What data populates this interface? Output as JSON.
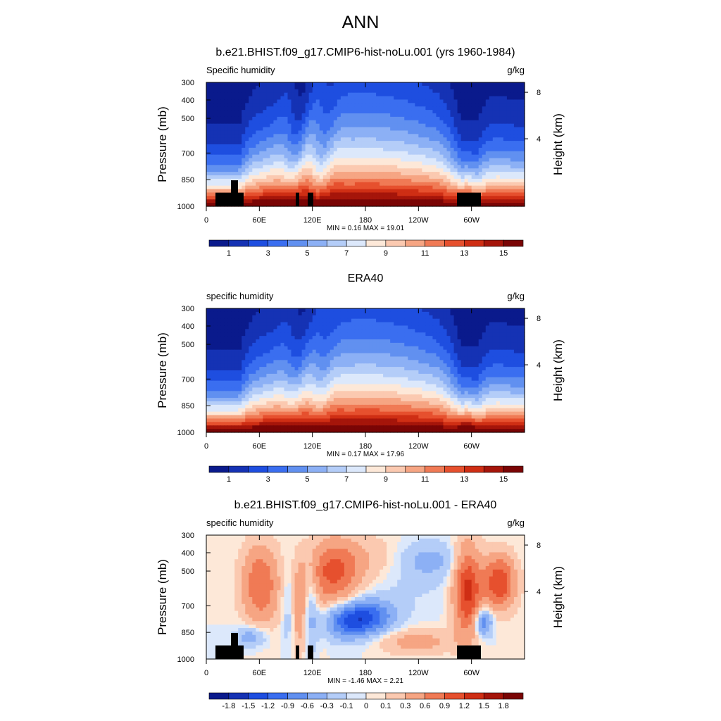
{
  "page": {
    "title": "ANN"
  },
  "chart_data": [
    {
      "type": "heatmap",
      "name": "model-panel",
      "title": "b.e21.BHIST.f09_g17.CMIP6-hist-noLu.001 (yrs 1960-1984)",
      "left_label": "Specific humidity",
      "units": "g/kg",
      "ylabel": "Pressure (mb)",
      "y2label": "Height (km)",
      "x_ticks": [
        "0",
        "60E",
        "120E",
        "180",
        "120W",
        "60W"
      ],
      "y_ticks": [
        "300",
        "400",
        "500",
        "700",
        "850",
        "1000"
      ],
      "y2_ticks": [
        "8",
        "4"
      ],
      "stats": "MIN =   0.16  MAX =  19.01",
      "colorbar_labels": [
        "1",
        "3",
        "5",
        "7",
        "9",
        "11",
        "13",
        "15"
      ],
      "colors": [
        "#0a1a8c",
        "#1532b4",
        "#1e4ee0",
        "#3a6ef0",
        "#6190f0",
        "#8cb0f5",
        "#b4cdf8",
        "#dce8fb",
        "#fde8d8",
        "#fbc9b0",
        "#f6a583",
        "#f07a55",
        "#e6502e",
        "#cf2e14",
        "#a5150a",
        "#7a0505"
      ]
    },
    {
      "type": "heatmap",
      "name": "obs-panel",
      "title": "ERA40",
      "left_label": "specific humidity",
      "units": "g/kg",
      "ylabel": "Pressure (mb)",
      "y2label": "Height (km)",
      "x_ticks": [
        "0",
        "60E",
        "120E",
        "180",
        "120W",
        "60W"
      ],
      "y_ticks": [
        "300",
        "400",
        "500",
        "700",
        "850",
        "1000"
      ],
      "y2_ticks": [
        "8",
        "4"
      ],
      "stats": "MIN =   0.17  MAX =  17.96",
      "colorbar_labels": [
        "1",
        "3",
        "5",
        "7",
        "9",
        "11",
        "13",
        "15"
      ],
      "colors": [
        "#0a1a8c",
        "#1532b4",
        "#1e4ee0",
        "#3a6ef0",
        "#6190f0",
        "#8cb0f5",
        "#b4cdf8",
        "#dce8fb",
        "#fde8d8",
        "#fbc9b0",
        "#f6a583",
        "#f07a55",
        "#e6502e",
        "#cf2e14",
        "#a5150a",
        "#7a0505"
      ]
    },
    {
      "type": "heatmap",
      "name": "diff-panel",
      "title": "b.e21.BHIST.f09_g17.CMIP6-hist-noLu.001 - ERA40",
      "left_label": "specific humidity",
      "units": "g/kg",
      "ylabel": "Pressure (mb)",
      "y2label": "Height (km)",
      "x_ticks": [
        "0",
        "60E",
        "120E",
        "180",
        "120W",
        "60W"
      ],
      "y_ticks": [
        "300",
        "400",
        "500",
        "700",
        "850",
        "1000"
      ],
      "y2_ticks": [
        "8",
        "4"
      ],
      "stats": "MIN =  -1.46  MAX =   2.21",
      "colorbar_labels": [
        "-1.8",
        "-1.5",
        "-1.2",
        "-0.9",
        "-0.6",
        "-0.3",
        "-0.1",
        "0",
        "0.1",
        "0.3",
        "0.6",
        "0.9",
        "1.2",
        "1.5",
        "1.8"
      ],
      "colors": [
        "#0a1a8c",
        "#1532b4",
        "#1e4ee0",
        "#3a6ef0",
        "#6190f0",
        "#8cb0f5",
        "#b4cdf8",
        "#dce8fb",
        "#fde8d8",
        "#fbc9b0",
        "#f6a583",
        "#f07a55",
        "#e6502e",
        "#cf2e14",
        "#a5150a",
        "#7a0505"
      ]
    }
  ]
}
